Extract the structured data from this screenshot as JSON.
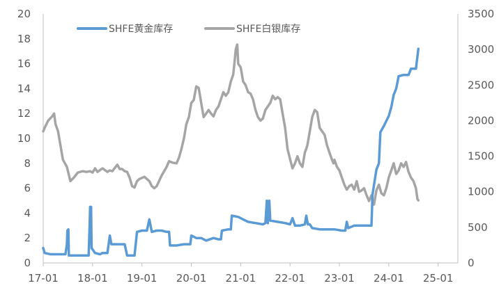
{
  "chart_data": {
    "type": "line",
    "legend": {
      "placement": "top-center"
    },
    "x_ticks": [
      "17-01",
      "18-01",
      "19-01",
      "20-01",
      "21-01",
      "22-01",
      "23-01",
      "24-01",
      "25-01"
    ],
    "x_range": [
      0,
      8.4
    ],
    "y_left": {
      "range": [
        0,
        20
      ],
      "ticks": [
        "0",
        "2",
        "4",
        "6",
        "8",
        "10",
        "12",
        "14",
        "16",
        "18",
        "20"
      ]
    },
    "y_right": {
      "range": [
        0,
        3500
      ],
      "ticks": [
        "0",
        "500",
        "1000",
        "1500",
        "2000",
        "2500",
        "3000",
        "3500"
      ]
    },
    "grid": false,
    "series": [
      {
        "name": "SHFE黄金库存",
        "axis": "left",
        "color": "#5B9BD5",
        "points": [
          [
            0.0,
            1.2
          ],
          [
            0.03,
            0.8
          ],
          [
            0.15,
            0.7
          ],
          [
            0.3,
            0.7
          ],
          [
            0.45,
            0.7
          ],
          [
            0.48,
            1.5
          ],
          [
            0.49,
            2.6
          ],
          [
            0.51,
            2.7
          ],
          [
            0.52,
            0.6
          ],
          [
            0.7,
            0.6
          ],
          [
            0.92,
            0.6
          ],
          [
            0.94,
            3.0
          ],
          [
            0.95,
            4.5
          ],
          [
            0.97,
            4.5
          ],
          [
            0.98,
            1.2
          ],
          [
            1.05,
            0.8
          ],
          [
            1.15,
            0.7
          ],
          [
            1.2,
            0.8
          ],
          [
            1.3,
            0.8
          ],
          [
            1.35,
            2.2
          ],
          [
            1.38,
            1.5
          ],
          [
            1.5,
            1.5
          ],
          [
            1.65,
            1.5
          ],
          [
            1.7,
            0.6
          ],
          [
            1.85,
            0.6
          ],
          [
            1.9,
            2.5
          ],
          [
            2.0,
            2.6
          ],
          [
            2.1,
            2.6
          ],
          [
            2.15,
            3.5
          ],
          [
            2.2,
            2.5
          ],
          [
            2.3,
            2.6
          ],
          [
            2.4,
            2.6
          ],
          [
            2.5,
            2.5
          ],
          [
            2.55,
            2.5
          ],
          [
            2.57,
            1.4
          ],
          [
            2.7,
            1.4
          ],
          [
            2.85,
            1.5
          ],
          [
            2.98,
            1.5
          ],
          [
            3.0,
            2.2
          ],
          [
            3.1,
            2.0
          ],
          [
            3.2,
            2.0
          ],
          [
            3.3,
            1.8
          ],
          [
            3.45,
            2.0
          ],
          [
            3.55,
            1.9
          ],
          [
            3.6,
            1.9
          ],
          [
            3.62,
            2.6
          ],
          [
            3.75,
            2.7
          ],
          [
            3.8,
            2.7
          ],
          [
            3.82,
            3.8
          ],
          [
            3.95,
            3.7
          ],
          [
            4.05,
            3.5
          ],
          [
            4.15,
            3.3
          ],
          [
            4.3,
            3.2
          ],
          [
            4.45,
            3.1
          ],
          [
            4.5,
            3.2
          ],
          [
            4.53,
            5.0
          ],
          [
            4.55,
            3.2
          ],
          [
            4.58,
            5.0
          ],
          [
            4.6,
            3.4
          ],
          [
            4.75,
            3.3
          ],
          [
            4.9,
            3.2
          ],
          [
            5.0,
            3.1
          ],
          [
            5.05,
            3.6
          ],
          [
            5.1,
            3.0
          ],
          [
            5.2,
            3.0
          ],
          [
            5.3,
            3.1
          ],
          [
            5.33,
            3.8
          ],
          [
            5.36,
            3.1
          ],
          [
            5.4,
            3.1
          ],
          [
            5.45,
            2.8
          ],
          [
            5.6,
            2.7
          ],
          [
            5.75,
            2.7
          ],
          [
            5.9,
            2.7
          ],
          [
            6.05,
            2.6
          ],
          [
            6.12,
            2.6
          ],
          [
            6.15,
            3.3
          ],
          [
            6.18,
            2.8
          ],
          [
            6.3,
            3.0
          ],
          [
            6.45,
            3.0
          ],
          [
            6.55,
            3.0
          ],
          [
            6.65,
            3.0
          ],
          [
            6.67,
            5.5
          ],
          [
            6.75,
            7.5
          ],
          [
            6.8,
            8.0
          ],
          [
            6.83,
            10.5
          ],
          [
            6.9,
            11.0
          ],
          [
            6.95,
            11.4
          ],
          [
            7.0,
            11.8
          ],
          [
            7.05,
            12.5
          ],
          [
            7.1,
            13.5
          ],
          [
            7.15,
            14.0
          ],
          [
            7.2,
            15.0
          ],
          [
            7.3,
            15.1
          ],
          [
            7.4,
            15.1
          ],
          [
            7.45,
            15.6
          ],
          [
            7.55,
            15.6
          ],
          [
            7.6,
            17.2
          ]
        ]
      },
      {
        "name": "SHFE白银库存",
        "axis": "right",
        "color": "#A5A5A5",
        "points": [
          [
            0.0,
            1850
          ],
          [
            0.03,
            1900
          ],
          [
            0.1,
            2000
          ],
          [
            0.18,
            2060
          ],
          [
            0.22,
            2100
          ],
          [
            0.25,
            1950
          ],
          [
            0.3,
            1850
          ],
          [
            0.35,
            1650
          ],
          [
            0.4,
            1450
          ],
          [
            0.48,
            1350
          ],
          [
            0.55,
            1150
          ],
          [
            0.62,
            1200
          ],
          [
            0.7,
            1270
          ],
          [
            0.8,
            1290
          ],
          [
            0.88,
            1280
          ],
          [
            0.95,
            1290
          ],
          [
            1.0,
            1270
          ],
          [
            1.05,
            1330
          ],
          [
            1.1,
            1280
          ],
          [
            1.2,
            1330
          ],
          [
            1.3,
            1280
          ],
          [
            1.35,
            1300
          ],
          [
            1.4,
            1290
          ],
          [
            1.5,
            1380
          ],
          [
            1.55,
            1320
          ],
          [
            1.6,
            1320
          ],
          [
            1.65,
            1290
          ],
          [
            1.7,
            1280
          ],
          [
            1.75,
            1200
          ],
          [
            1.8,
            1080
          ],
          [
            1.85,
            1060
          ],
          [
            1.9,
            1150
          ],
          [
            1.95,
            1180
          ],
          [
            2.05,
            1210
          ],
          [
            2.1,
            1180
          ],
          [
            2.15,
            1150
          ],
          [
            2.2,
            1080
          ],
          [
            2.25,
            1050
          ],
          [
            2.3,
            1080
          ],
          [
            2.4,
            1230
          ],
          [
            2.5,
            1350
          ],
          [
            2.55,
            1430
          ],
          [
            2.62,
            1410
          ],
          [
            2.7,
            1400
          ],
          [
            2.75,
            1480
          ],
          [
            2.8,
            1600
          ],
          [
            2.85,
            1750
          ],
          [
            2.9,
            1950
          ],
          [
            2.95,
            2050
          ],
          [
            3.0,
            2250
          ],
          [
            3.05,
            2290
          ],
          [
            3.1,
            2480
          ],
          [
            3.15,
            2460
          ],
          [
            3.2,
            2250
          ],
          [
            3.25,
            2050
          ],
          [
            3.3,
            2100
          ],
          [
            3.35,
            2150
          ],
          [
            3.4,
            2100
          ],
          [
            3.45,
            2060
          ],
          [
            3.5,
            2150
          ],
          [
            3.55,
            2200
          ],
          [
            3.6,
            2300
          ],
          [
            3.65,
            2400
          ],
          [
            3.7,
            2350
          ],
          [
            3.75,
            2400
          ],
          [
            3.8,
            2550
          ],
          [
            3.85,
            2650
          ],
          [
            3.88,
            2850
          ],
          [
            3.9,
            3000
          ],
          [
            3.93,
            3070
          ],
          [
            3.95,
            2800
          ],
          [
            4.0,
            2750
          ],
          [
            4.05,
            2550
          ],
          [
            4.1,
            2500
          ],
          [
            4.15,
            2400
          ],
          [
            4.2,
            2380
          ],
          [
            4.25,
            2300
          ],
          [
            4.3,
            2150
          ],
          [
            4.35,
            2050
          ],
          [
            4.4,
            2000
          ],
          [
            4.45,
            2030
          ],
          [
            4.5,
            2150
          ],
          [
            4.55,
            2200
          ],
          [
            4.6,
            2250
          ],
          [
            4.65,
            2350
          ],
          [
            4.7,
            2300
          ],
          [
            4.75,
            2330
          ],
          [
            4.8,
            2300
          ],
          [
            4.85,
            2100
          ],
          [
            4.9,
            1900
          ],
          [
            4.95,
            1600
          ],
          [
            5.0,
            1460
          ],
          [
            5.05,
            1330
          ],
          [
            5.1,
            1400
          ],
          [
            5.15,
            1500
          ],
          [
            5.2,
            1400
          ],
          [
            5.25,
            1350
          ],
          [
            5.3,
            1550
          ],
          [
            5.35,
            1650
          ],
          [
            5.4,
            1850
          ],
          [
            5.45,
            2050
          ],
          [
            5.5,
            2150
          ],
          [
            5.55,
            2120
          ],
          [
            5.6,
            1900
          ],
          [
            5.65,
            1850
          ],
          [
            5.7,
            1800
          ],
          [
            5.75,
            1650
          ],
          [
            5.8,
            1550
          ],
          [
            5.85,
            1450
          ],
          [
            5.88,
            1400
          ],
          [
            5.9,
            1450
          ],
          [
            5.95,
            1350
          ],
          [
            6.0,
            1300
          ],
          [
            6.05,
            1200
          ],
          [
            6.1,
            1100
          ],
          [
            6.15,
            1030
          ],
          [
            6.2,
            1080
          ],
          [
            6.25,
            1100
          ],
          [
            6.3,
            1030
          ],
          [
            6.35,
            1150
          ],
          [
            6.4,
            1000
          ],
          [
            6.45,
            1020
          ],
          [
            6.5,
            1050
          ],
          [
            6.55,
            950
          ],
          [
            6.6,
            870
          ],
          [
            6.65,
            950
          ],
          [
            6.7,
            820
          ],
          [
            6.75,
            1020
          ],
          [
            6.8,
            1100
          ],
          [
            6.85,
            980
          ],
          [
            6.9,
            950
          ],
          [
            6.95,
            1050
          ],
          [
            7.0,
            1200
          ],
          [
            7.05,
            1300
          ],
          [
            7.1,
            1400
          ],
          [
            7.15,
            1250
          ],
          [
            7.2,
            1300
          ],
          [
            7.25,
            1400
          ],
          [
            7.3,
            1350
          ],
          [
            7.35,
            1420
          ],
          [
            7.4,
            1280
          ],
          [
            7.45,
            1200
          ],
          [
            7.5,
            1150
          ],
          [
            7.55,
            1050
          ],
          [
            7.58,
            900
          ],
          [
            7.6,
            880
          ]
        ]
      }
    ]
  }
}
